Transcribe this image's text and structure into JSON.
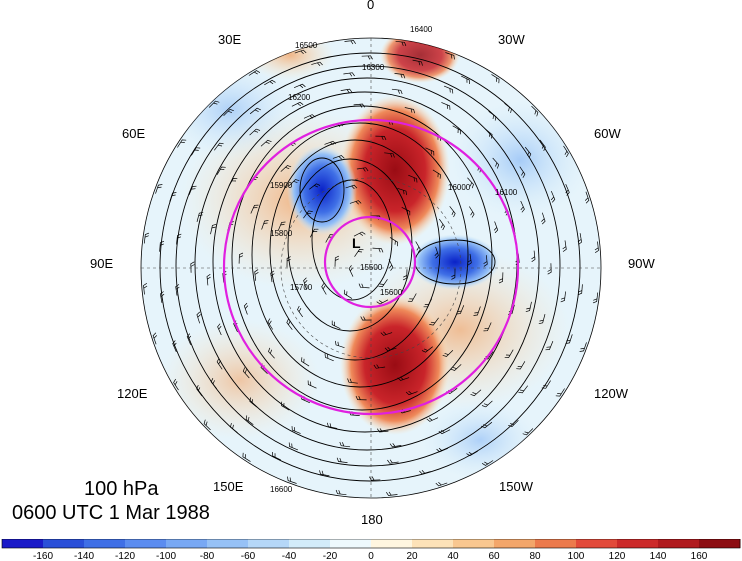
{
  "title": {
    "level": "100 hPa",
    "time": "0600 UTC 1 Mar 1988"
  },
  "map": {
    "projection": "polar-stereographic-north",
    "center": "North Pole",
    "longitude_labels": [
      {
        "text": "0",
        "lon": 0
      },
      {
        "text": "30W",
        "lon": -30
      },
      {
        "text": "60W",
        "lon": -60
      },
      {
        "text": "90W",
        "lon": -90
      },
      {
        "text": "120W",
        "lon": -120
      },
      {
        "text": "150W",
        "lon": -150
      },
      {
        "text": "180",
        "lon": 180
      },
      {
        "text": "150E",
        "lon": 150
      },
      {
        "text": "120E",
        "lon": 120
      },
      {
        "text": "90E",
        "lon": 90
      },
      {
        "text": "60E",
        "lon": 60
      },
      {
        "text": "30E",
        "lon": 30
      }
    ],
    "contour_labels": [
      "16400",
      "16500",
      "16300",
      "16200",
      "16100",
      "16000",
      "15900",
      "15800",
      "15700",
      "15600",
      "15500",
      "16600"
    ],
    "low_marker": "L",
    "colors": {
      "contour": "#000000",
      "circle": "#e020e0",
      "positive_max": "#a50f15",
      "negative_max": "#0a22c8"
    }
  },
  "colorbar": {
    "ticks": [
      "-160",
      "-140",
      "-120",
      "-100",
      "-80",
      "-60",
      "-40",
      "-20",
      "0",
      "20",
      "40",
      "60",
      "80",
      "100",
      "120",
      "140",
      "160"
    ],
    "colors": [
      "#1a1ac8",
      "#2a4fd8",
      "#3f6fe6",
      "#5b8cf0",
      "#78a8f4",
      "#96c1f6",
      "#b5d7f8",
      "#d3ecfa",
      "#eef9fd",
      "#fff6e0",
      "#fde2b8",
      "#f9c790",
      "#f3a66a",
      "#ec7a4c",
      "#e24a3a",
      "#cc2a2a",
      "#b01a1e",
      "#8c0d12"
    ]
  }
}
